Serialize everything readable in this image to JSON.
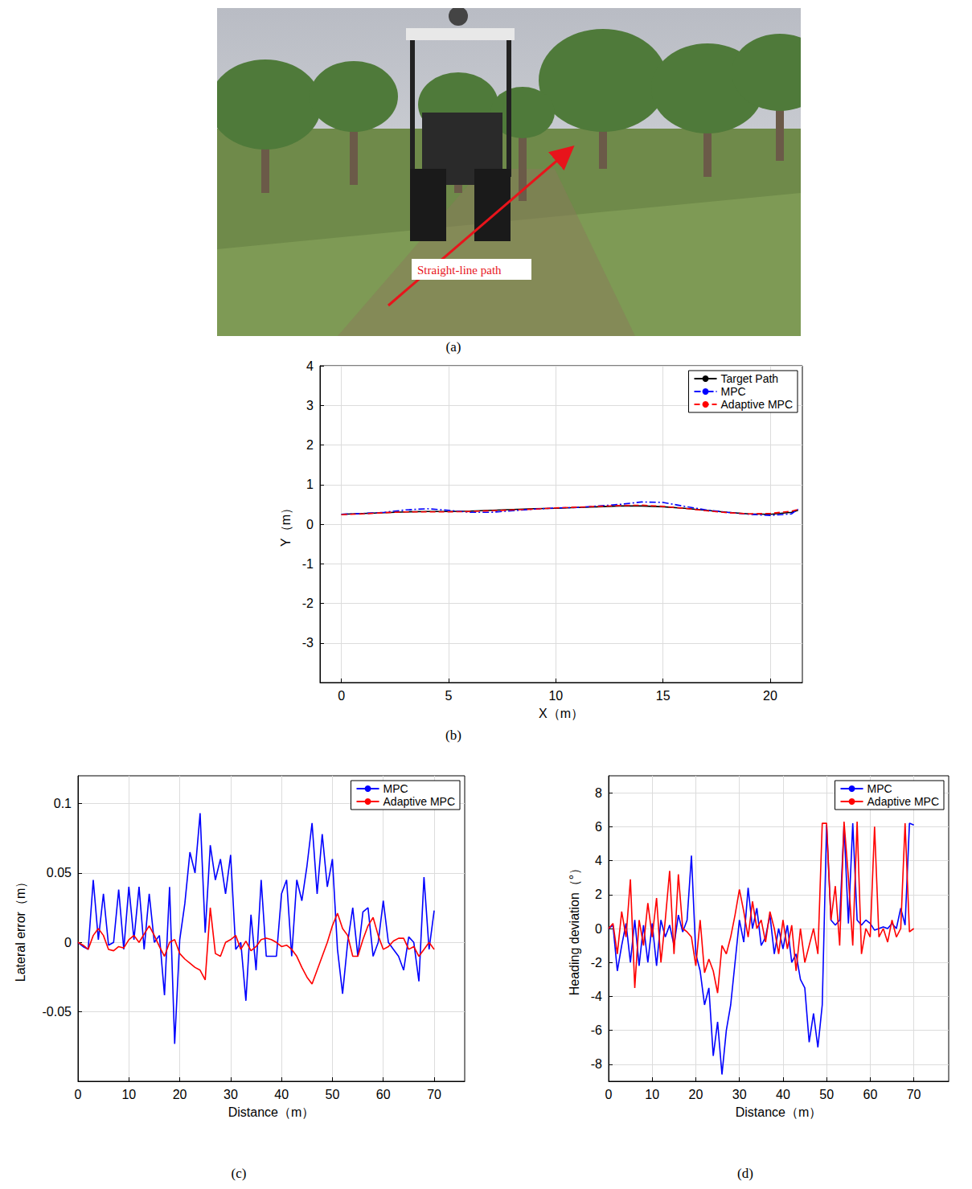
{
  "chart_data": [
    {
      "type": "image",
      "panel": "(a)",
      "annotation": "Straight-line path"
    },
    {
      "type": "line",
      "panel": "(b)",
      "x_label": "X（m）",
      "y_label": "Y（m）",
      "xlim": [
        -1,
        21.5
      ],
      "xticks": [
        0,
        5,
        10,
        15,
        20
      ],
      "ylim": [
        -4,
        4
      ],
      "yticks": [
        -3,
        -2,
        -1,
        0,
        1,
        2,
        3,
        4
      ],
      "grid": true,
      "legend": "upper right",
      "x": [
        0,
        1,
        2,
        3,
        4,
        5,
        6,
        7,
        8,
        9,
        10,
        11,
        12,
        13,
        14,
        15,
        16,
        17,
        18,
        19,
        20,
        21,
        21.3
      ],
      "series": [
        {
          "name": "Target Path",
          "color": "#000000",
          "line_style": "solid",
          "values": [
            0.25,
            0.27,
            0.29,
            0.31,
            0.32,
            0.32,
            0.33,
            0.35,
            0.37,
            0.39,
            0.4,
            0.42,
            0.44,
            0.46,
            0.46,
            0.44,
            0.4,
            0.35,
            0.3,
            0.26,
            0.25,
            0.3,
            0.35
          ]
        },
        {
          "name": "MPC",
          "color": "#0000ff",
          "line_style": "dashdot",
          "values": [
            0.25,
            0.27,
            0.3,
            0.36,
            0.39,
            0.35,
            0.3,
            0.3,
            0.34,
            0.38,
            0.41,
            0.42,
            0.46,
            0.5,
            0.56,
            0.55,
            0.45,
            0.36,
            0.3,
            0.25,
            0.22,
            0.26,
            0.38
          ]
        },
        {
          "name": "Adaptive MPC",
          "color": "#ff0000",
          "line_style": "dashed",
          "values": [
            0.24,
            0.26,
            0.29,
            0.31,
            0.31,
            0.31,
            0.32,
            0.34,
            0.36,
            0.38,
            0.41,
            0.43,
            0.45,
            0.47,
            0.48,
            0.45,
            0.4,
            0.34,
            0.29,
            0.26,
            0.27,
            0.33,
            0.37
          ]
        }
      ]
    },
    {
      "type": "line",
      "panel": "(c)",
      "x_label": "Distance（m）",
      "y_label": "Lateral error（m）",
      "xlim": [
        0,
        76
      ],
      "xticks": [
        0,
        10,
        20,
        30,
        40,
        50,
        60,
        70
      ],
      "ylim": [
        -0.1,
        0.12
      ],
      "yticks": [
        -0.05,
        0,
        0.05,
        0.1
      ],
      "grid": true,
      "legend": "upper right",
      "x": [
        0,
        1,
        2,
        3,
        4,
        5,
        6,
        7,
        8,
        9,
        10,
        11,
        12,
        13,
        14,
        15,
        16,
        17,
        18,
        19,
        20,
        21,
        22,
        23,
        24,
        25,
        26,
        27,
        28,
        29,
        30,
        31,
        32,
        33,
        34,
        35,
        36,
        37,
        38,
        39,
        40,
        41,
        42,
        43,
        44,
        45,
        46,
        47,
        48,
        49,
        50,
        51,
        52,
        53,
        54,
        55,
        56,
        57,
        58,
        59,
        60,
        61,
        62,
        63,
        64,
        65,
        66,
        67,
        68,
        69,
        70
      ],
      "series": [
        {
          "name": "MPC",
          "color": "#0000ff",
          "line_style": "solid",
          "values": [
            0,
            -0.003,
            -0.005,
            0.045,
            0.002,
            0.035,
            -0.002,
            0.0,
            0.038,
            -0.005,
            0.04,
            0.002,
            0.04,
            -0.005,
            0.035,
            0.0,
            0.005,
            -0.038,
            0.04,
            -0.073,
            0.002,
            0.028,
            0.065,
            0.05,
            0.093,
            0.007,
            0.07,
            0.045,
            0.06,
            0.035,
            0.063,
            -0.005,
            0.0,
            -0.042,
            0.02,
            -0.02,
            0.045,
            -0.01,
            -0.01,
            -0.01,
            0.035,
            0.045,
            -0.01,
            0.045,
            0.03,
            0.055,
            0.086,
            0.035,
            0.078,
            0.04,
            0.06,
            -0.005,
            -0.037,
            0.0,
            0.025,
            -0.01,
            0.022,
            0.025,
            -0.01,
            0.0,
            0.03,
            0.0,
            -0.005,
            -0.01,
            -0.02,
            0.004,
            0.0,
            -0.028,
            0.047,
            -0.005,
            0.023
          ]
        },
        {
          "name": "Adaptive MPC",
          "color": "#ff0000",
          "line_style": "solid",
          "values": [
            0,
            -0.002,
            -0.005,
            0.005,
            0.01,
            0.005,
            -0.005,
            -0.006,
            -0.003,
            -0.004,
            0.002,
            0.005,
            0.0,
            0.006,
            0.012,
            0.005,
            -0.003,
            -0.01,
            0.0,
            0.002,
            -0.008,
            -0.012,
            -0.015,
            -0.018,
            -0.02,
            -0.027,
            0.025,
            -0.008,
            -0.01,
            0.0,
            0.002,
            0.005,
            -0.005,
            0.001,
            -0.006,
            -0.003,
            0.002,
            0.003,
            0.002,
            0.0,
            -0.003,
            -0.002,
            -0.005,
            -0.01,
            -0.018,
            -0.025,
            -0.03,
            -0.02,
            -0.01,
            0.0,
            0.012,
            0.021,
            0.01,
            0.005,
            -0.01,
            -0.01,
            0.002,
            0.012,
            0.018,
            0.005,
            -0.005,
            -0.003,
            0.001,
            0.003,
            0.003,
            -0.005,
            -0.003,
            -0.01,
            -0.005,
            0.0,
            -0.005
          ]
        }
      ]
    },
    {
      "type": "line",
      "panel": "(d)",
      "x_label": "Distance（m）",
      "y_label": "Heading deviation（°）",
      "xlim": [
        0,
        78
      ],
      "xticks": [
        0,
        10,
        20,
        30,
        40,
        50,
        60,
        70
      ],
      "ylim": [
        -9,
        9
      ],
      "yticks": [
        -8,
        -6,
        -4,
        -2,
        0,
        2,
        4,
        6,
        8
      ],
      "grid": true,
      "legend": "upper right",
      "x": [
        0,
        1,
        2,
        3,
        4,
        5,
        6,
        7,
        8,
        9,
        10,
        11,
        12,
        13,
        14,
        15,
        16,
        17,
        18,
        19,
        20,
        21,
        22,
        23,
        24,
        25,
        26,
        27,
        28,
        29,
        30,
        31,
        32,
        33,
        34,
        35,
        36,
        37,
        38,
        39,
        40,
        41,
        42,
        43,
        44,
        45,
        46,
        47,
        48,
        49,
        50,
        51,
        52,
        53,
        54,
        55,
        56,
        57,
        58,
        59,
        60,
        61,
        62,
        63,
        64,
        65,
        66,
        67,
        68,
        69,
        70
      ],
      "series": [
        {
          "name": "MPC",
          "color": "#0000ff",
          "line_style": "solid",
          "values": [
            0,
            0.2,
            -2.5,
            -1.0,
            0.3,
            -2.0,
            0.5,
            -2.2,
            0.2,
            -2.0,
            0.3,
            -2.2,
            0.5,
            -0.5,
            0.2,
            -1.0,
            0.8,
            -0.2,
            0.5,
            4.3,
            -1.5,
            -2.5,
            -4.5,
            -3.5,
            -7.5,
            -5.5,
            -8.6,
            -6.0,
            -4.5,
            -2.0,
            0.5,
            -0.8,
            2.4,
            0.0,
            1.2,
            -1.0,
            -0.5,
            0.8,
            -1.5,
            0.0,
            -1.2,
            0.2,
            -2.0,
            -1.5,
            -3.0,
            -3.5,
            -6.7,
            -5.0,
            -7.0,
            -4.5,
            6.1,
            0.5,
            0.2,
            0.5,
            6.1,
            0.3,
            6.2,
            0.5,
            0.2,
            0.5,
            0.3,
            -0.1,
            0.0,
            0.1,
            0.0,
            0.3,
            0.0,
            1.2,
            0.2,
            6.2,
            6.1
          ]
        },
        {
          "name": "Adaptive MPC",
          "color": "#ff0000",
          "line_style": "solid",
          "values": [
            0,
            0.3,
            -1.5,
            1.0,
            -0.5,
            2.9,
            -3.5,
            0.5,
            -1.0,
            1.5,
            -0.5,
            1.8,
            -2.0,
            0.5,
            3.4,
            -1.5,
            3.2,
            0.0,
            -0.2,
            -0.5,
            -2.2,
            0.5,
            -2.6,
            -1.8,
            -2.5,
            -3.8,
            -1.0,
            -1.5,
            -0.5,
            0.8,
            2.3,
            1.0,
            -0.5,
            1.6,
            0.0,
            0.5,
            -0.8,
            1.0,
            0.0,
            -1.5,
            0.5,
            -1.2,
            0.2,
            -2.5,
            0.0,
            -2.0,
            -1.0,
            0.0,
            -1.5,
            6.2,
            6.2,
            0.5,
            2.5,
            -1.0,
            6.3,
            3.0,
            -1.0,
            6.3,
            -1.5,
            0.0,
            -0.5,
            6.0,
            -0.5,
            0.0,
            -0.8,
            0.5,
            -0.5,
            0.0,
            6.2,
            -0.2,
            0.0
          ]
        }
      ]
    }
  ]
}
